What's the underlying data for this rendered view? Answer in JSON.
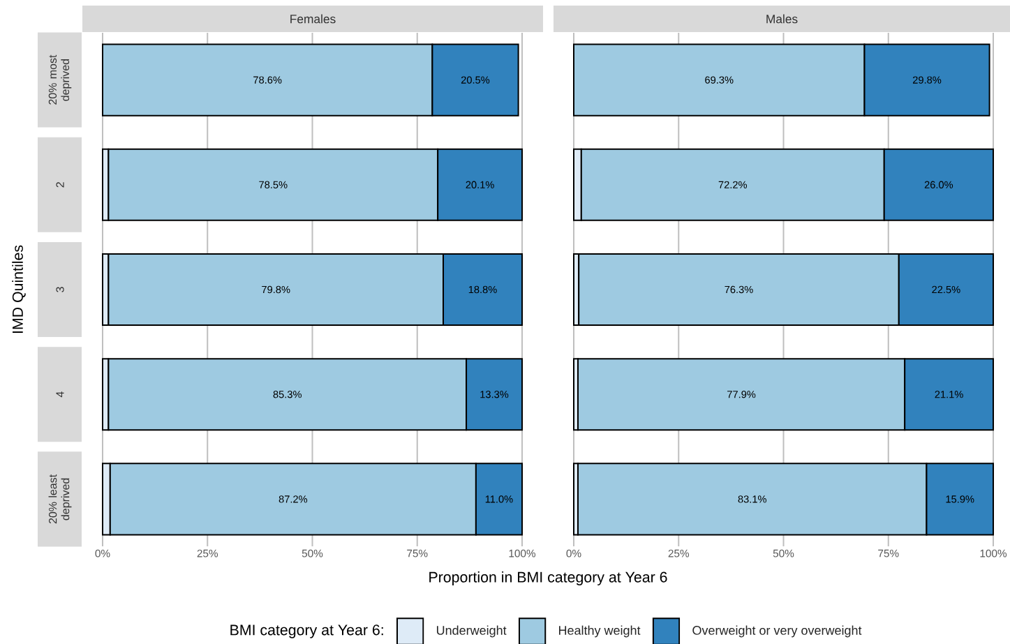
{
  "chart_data": [
    {
      "type": "bar",
      "orientation": "horizontal",
      "stacked": true,
      "title": "Females",
      "xlabel": "Proportion in BMI category at Year 6",
      "ylabel": "IMD Quintiles",
      "legend_title": "BMI category at Year 6:",
      "legend": "bottom",
      "grid": "x",
      "categories": [
        "20% most deprived",
        "2",
        "3",
        "4",
        "20% least deprived"
      ],
      "xlim": [
        0,
        100
      ],
      "xticks": [
        {
          "value": 0,
          "label": "0%"
        },
        {
          "value": 25,
          "label": "25%"
        },
        {
          "value": 50,
          "label": "50%"
        },
        {
          "value": 75,
          "label": "75%"
        },
        {
          "value": 100,
          "label": "100%"
        }
      ],
      "series": [
        {
          "name": "Underweight",
          "color": "#deebf7",
          "values": [
            null,
            1.4,
            1.4,
            1.4,
            1.8
          ]
        },
        {
          "name": "Healthy weight",
          "color": "#9ecae1",
          "values": [
            78.6,
            78.5,
            79.8,
            85.3,
            87.2
          ],
          "value_labels": [
            "78.6%",
            "78.5%",
            "79.8%",
            "85.3%",
            "87.2%"
          ]
        },
        {
          "name": "Overweight or very overweight",
          "color": "#3182bd",
          "values": [
            20.5,
            20.1,
            18.8,
            13.3,
            11.0
          ],
          "value_labels": [
            "20.5%",
            "20.1%",
            "18.8%",
            "13.3%",
            "11.0%"
          ]
        }
      ]
    },
    {
      "type": "bar",
      "orientation": "horizontal",
      "stacked": true,
      "title": "Males",
      "grid": "x",
      "tick_labels": "x",
      "categories": [
        null,
        null,
        null,
        null,
        null
      ],
      "xlim": [
        0,
        100
      ],
      "xticks": [
        {
          "value": 0,
          "label": "0%"
        },
        {
          "value": 25,
          "label": "25%"
        },
        {
          "value": 50,
          "label": "50%"
        },
        {
          "value": 75,
          "label": "75%"
        },
        {
          "value": 100,
          "label": "100%"
        }
      ],
      "series": [
        {
          "color": "#deebf7",
          "values": [
            null,
            1.8,
            1.2,
            1.0,
            1.0
          ]
        },
        {
          "color": "#9ecae1",
          "values": [
            69.3,
            72.2,
            76.3,
            77.9,
            83.1
          ],
          "value_labels": [
            "69.3%",
            "72.2%",
            "76.3%",
            "77.9%",
            "83.1%"
          ]
        },
        {
          "color": "#3182bd",
          "values": [
            29.8,
            26.0,
            22.5,
            21.1,
            15.9
          ],
          "value_labels": [
            "29.8%",
            "26.0%",
            "22.5%",
            "21.1%",
            "15.9%"
          ]
        }
      ]
    }
  ]
}
